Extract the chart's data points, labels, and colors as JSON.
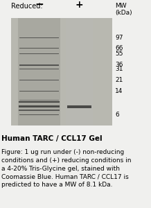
{
  "title": "Human TARC / CCL17 Gel",
  "caption": "Figure: 1 ug run under (-) non-reducing\nconditions and (+) reducing conditions in\na 4-20% Tris-Glycine gel, stained with\nCoomassie Blue. Human TARC / CCL17 is\npredicted to have a MW of 8.1 kDa.",
  "reduced_label": "Reduced:",
  "minus_label": "−",
  "plus_label": "+",
  "mw_label": "MW\n(kDa)",
  "mw_markers": [
    97,
    66,
    55,
    36,
    31,
    21,
    14,
    6
  ],
  "gel_bg_color": "#b8b8b0",
  "lane1_color": "#a0a098",
  "lane2_color": "#b0b0a8",
  "band_color": "#3a3a38",
  "fig_bg_color": "#f0f0ee",
  "title_fontsize": 7.5,
  "caption_fontsize": 6.5,
  "label_fontsize": 7.0,
  "mw_fontsize": 6.5
}
